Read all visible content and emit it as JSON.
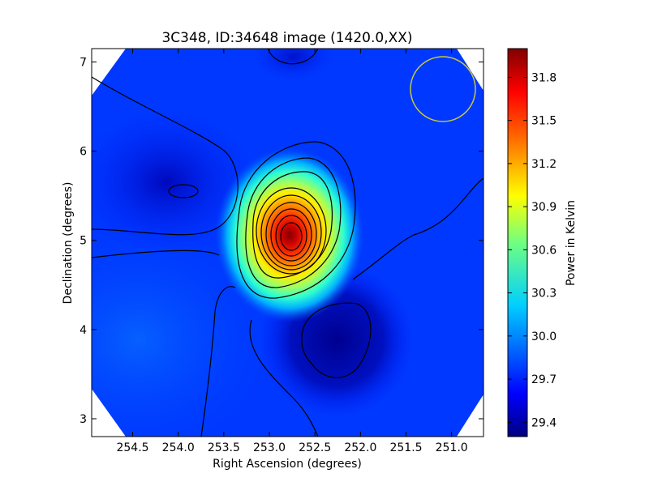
{
  "chart_data": {
    "type": "heatmap",
    "title": "3C348, ID:34648 image (1420.0,XX)",
    "xlabel": "Right Ascension (degrees)",
    "ylabel": "Declination (degrees)",
    "xlim": [
      254.95,
      250.65
    ],
    "ylim": [
      2.8,
      7.15
    ],
    "x_ticks": [
      254.5,
      254.0,
      253.5,
      253.0,
      252.5,
      252.0,
      251.5,
      251.0
    ],
    "x_tick_labels": [
      "254.5",
      "254.0",
      "253.5",
      "253.0",
      "252.5",
      "252.0",
      "251.5",
      "251.0"
    ],
    "y_ticks": [
      3,
      4,
      5,
      6,
      7
    ],
    "y_tick_labels": [
      "3",
      "4",
      "5",
      "6",
      "7"
    ],
    "colorbar": {
      "label": "Power in Kelvin",
      "range": [
        29.3,
        32.0
      ],
      "ticks": [
        29.4,
        29.7,
        30.0,
        30.3,
        30.6,
        30.9,
        31.2,
        31.5,
        31.8
      ],
      "tick_labels": [
        "29.4",
        "29.7",
        "30.0",
        "30.3",
        "30.6",
        "30.9",
        "31.2",
        "31.5",
        "31.8"
      ],
      "colormap": "jet"
    },
    "features": [
      {
        "kind": "peak",
        "ra": 252.78,
        "dec": 5.02,
        "value": 32.0
      },
      {
        "kind": "minimum",
        "ra": 252.2,
        "dec": 3.9,
        "value": 29.35
      },
      {
        "kind": "minimum",
        "ra": 254.0,
        "dec": 5.55,
        "value": 29.4
      },
      {
        "kind": "beam-circle",
        "ra": 251.05,
        "dec": 6.7,
        "radius_deg": 0.37,
        "color": "#c8c840"
      }
    ],
    "background_value": 29.75,
    "grid": false
  }
}
